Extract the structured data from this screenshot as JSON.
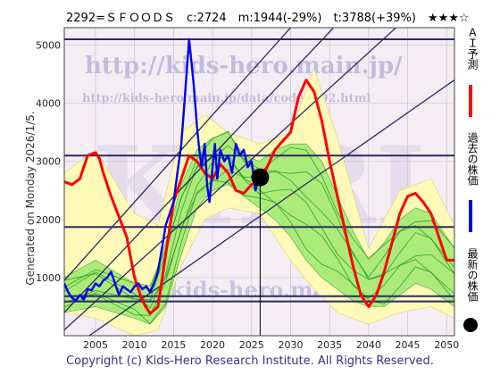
{
  "title_line": "2292=ＳＦＯＯＤＳ　c:2724　m:1944(-29%)　t:3788(+39%)　★★★☆",
  "generated": "Generated on Monday 2026/1/5.",
  "copyright": "Copyright (c) Kids-Hero Research Institute. All Rights Reserved.",
  "watermarks": {
    "url_main": "http://kids-hero.main.jp/",
    "url_code": "http://kids-hero.main.jp/data/code2292.html",
    "url_bottom": "kids-hero.main.jp",
    "big": "KHRI"
  },
  "legend": [
    {
      "label": "ＡＩ予測",
      "color": "#ff0000",
      "icon": "red-line"
    },
    {
      "label": "過去の株価",
      "color": "#0000ee",
      "icon": "blue-line"
    },
    {
      "label": "最新の株価",
      "color": "#000000",
      "icon": "black-dot"
    }
  ],
  "colors": {
    "plot_bg": "#f4eef4",
    "upper_band": "#fffab8",
    "lower_band": "#fffab8",
    "green_band": "#9ee86e",
    "green_dark": "#1f9a1f",
    "forecast": "#ff0000",
    "history": "#0000ee",
    "channel": "#2a2a66"
  },
  "chart_data": {
    "type": "line",
    "xlim": [
      2001,
      2051
    ],
    "ylim": [
      0,
      5300
    ],
    "x_ticks": [
      2005,
      2010,
      2015,
      2020,
      2025,
      2030,
      2035,
      2040,
      2045,
      2050
    ],
    "y_ticks": [
      1000,
      2000,
      3000,
      4000,
      5000
    ],
    "grid": true,
    "horizontal_levels": [
      5100,
      3100,
      1870,
      680,
      590
    ],
    "latest_point": {
      "x": 2026.1,
      "y": 2724
    },
    "history": {
      "name": "",
      "x": [
        2001,
        2001.5,
        2002,
        2002.5,
        2003,
        2003.5,
        2004,
        2004.5,
        2005,
        2005.5,
        2006,
        2006.5,
        2007,
        2007.5,
        2008,
        2008.5,
        2009,
        2009.5,
        2010,
        2010.5,
        2011,
        2011.5,
        2012,
        2012.5,
        2013,
        2013.5,
        2014,
        2014.5,
        2015,
        2015.5,
        2016,
        2016.5,
        2017,
        2017.3,
        2017.6,
        2018,
        2018.3,
        2018.6,
        2019,
        2019.3,
        2019.6,
        2020,
        2020.3,
        2020.6,
        2021,
        2021.5,
        2022,
        2022.5,
        2023,
        2023.5,
        2024,
        2024.5,
        2025,
        2025.5,
        2026
      ],
      "y": [
        900,
        750,
        650,
        600,
        700,
        620,
        800,
        780,
        900,
        850,
        950,
        1000,
        1100,
        900,
        700,
        850,
        800,
        750,
        850,
        900,
        800,
        850,
        750,
        900,
        1100,
        1500,
        1900,
        2100,
        2300,
        2800,
        3300,
        4200,
        5100,
        4700,
        4300,
        3600,
        3200,
        2900,
        3300,
        2600,
        2300,
        2900,
        3300,
        2700,
        3200,
        3000,
        3100,
        2800,
        3300,
        3100,
        3200,
        2900,
        3000,
        2500,
        2724
      ]
    },
    "forecast": {
      "name": "",
      "x": [
        2001,
        2002,
        2003,
        2003.5,
        2004,
        2005,
        2005.5,
        2006,
        2007,
        2008,
        2009,
        2010,
        2011,
        2012,
        2013,
        2014,
        2015,
        2016,
        2017,
        2018,
        2019,
        2020,
        2021,
        2022,
        2023,
        2024,
        2025,
        2026,
        2027,
        2028,
        2029,
        2030,
        2031,
        2032,
        2033,
        2034,
        2035,
        2036,
        2037,
        2038,
        2039,
        2040,
        2041,
        2042,
        2043,
        2044,
        2045,
        2046,
        2047,
        2048,
        2049,
        2050,
        2051
      ],
      "y": [
        2650,
        2600,
        2700,
        2900,
        3100,
        3150,
        3050,
        2800,
        2400,
        2050,
        1700,
        1000,
        600,
        380,
        500,
        1400,
        2300,
        2700,
        3100,
        3000,
        2800,
        2700,
        2950,
        2800,
        2500,
        2450,
        2600,
        2680,
        2900,
        3200,
        3350,
        3500,
        4100,
        4400,
        4200,
        3700,
        3000,
        2400,
        1800,
        1200,
        700,
        500,
        700,
        1100,
        1600,
        2100,
        2400,
        2450,
        2300,
        2100,
        1700,
        1300,
        1300
      ]
    },
    "band_upper": {
      "x": [
        2001,
        2005,
        2010,
        2013,
        2016,
        2019,
        2022,
        2026,
        2030,
        2033,
        2036,
        2040,
        2044,
        2048,
        2051
      ],
      "y": [
        2800,
        3200,
        2100,
        1900,
        3500,
        3800,
        3500,
        3300,
        3500,
        4600,
        3400,
        1500,
        2500,
        2700,
        1900
      ]
    },
    "band_lower": {
      "x": [
        2001,
        2005,
        2010,
        2013,
        2016,
        2019,
        2022,
        2026,
        2030,
        2033,
        2036,
        2040,
        2044,
        2048,
        2051
      ],
      "y": [
        400,
        300,
        0,
        100,
        1200,
        2000,
        2200,
        2100,
        1300,
        800,
        400,
        200,
        400,
        500,
        300
      ]
    },
    "green_upper": {
      "x": [
        2001,
        2005,
        2010,
        2012,
        2014,
        2016,
        2018,
        2020,
        2022,
        2024,
        2026,
        2028,
        2030,
        2032,
        2034,
        2036,
        2038,
        2040,
        2042,
        2044,
        2046,
        2048,
        2051
      ],
      "y": [
        1000,
        1300,
        900,
        800,
        1600,
        2600,
        3200,
        3400,
        3500,
        3100,
        3000,
        3200,
        3300,
        3300,
        3000,
        2400,
        1800,
        1300,
        1600,
        2000,
        2200,
        2100,
        1500
      ]
    },
    "green_lower": {
      "x": [
        2001,
        2005,
        2010,
        2012,
        2014,
        2016,
        2018,
        2020,
        2022,
        2024,
        2026,
        2028,
        2030,
        2032,
        2034,
        2036,
        2038,
        2040,
        2042,
        2044,
        2046,
        2048,
        2051
      ],
      "y": [
        400,
        500,
        300,
        200,
        500,
        1400,
        2200,
        2500,
        2600,
        2400,
        2200,
        2000,
        1700,
        1300,
        1000,
        800,
        600,
        500,
        500,
        700,
        900,
        800,
        500
      ]
    },
    "channel_lines": [
      {
        "x": [
          2001,
          2030
        ],
        "y": [
          950,
          5300
        ]
      },
      {
        "x": [
          2001,
          2035.5
        ],
        "y": [
          400,
          5300
        ]
      },
      {
        "x": [
          2001,
          2043.5
        ],
        "y": [
          100,
          5300
        ]
      },
      {
        "x": [
          2001,
          2051
        ],
        "y": [
          -300,
          4400
        ]
      }
    ]
  }
}
